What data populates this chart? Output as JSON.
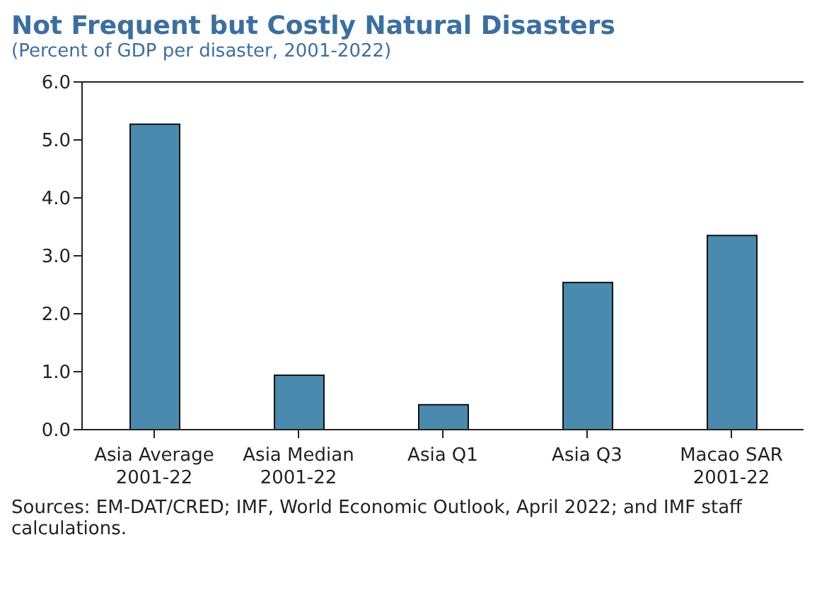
{
  "chart_data": {
    "type": "bar",
    "title": "Not Frequent but Costly Natural Disasters",
    "subtitle": "(Percent of GDP per disaster, 2001-2022)",
    "categories": [
      "Asia Average\n2001-22",
      "Asia Median\n2001-22",
      "Asia Q1",
      "Asia Q3",
      "Macao SAR\n2001-22"
    ],
    "values": [
      5.27,
      0.94,
      0.43,
      2.54,
      3.35
    ],
    "color": "#4a8aae",
    "ylim": [
      0,
      6
    ],
    "yticks": [
      {
        "value": 0,
        "label": "0.0"
      },
      {
        "value": 1,
        "label": "1.0"
      },
      {
        "value": 2,
        "label": "2.0"
      },
      {
        "value": 3,
        "label": "3.0"
      },
      {
        "value": 4,
        "label": "4.0"
      },
      {
        "value": 5,
        "label": "5.0"
      },
      {
        "value": 6,
        "label": "6.0"
      }
    ],
    "grid": false,
    "legend": false,
    "annotations": [
      "Sources: EM-DAT/CRED; IMF, World Economic Outlook, April 2022; and IMF staff calculations."
    ]
  }
}
